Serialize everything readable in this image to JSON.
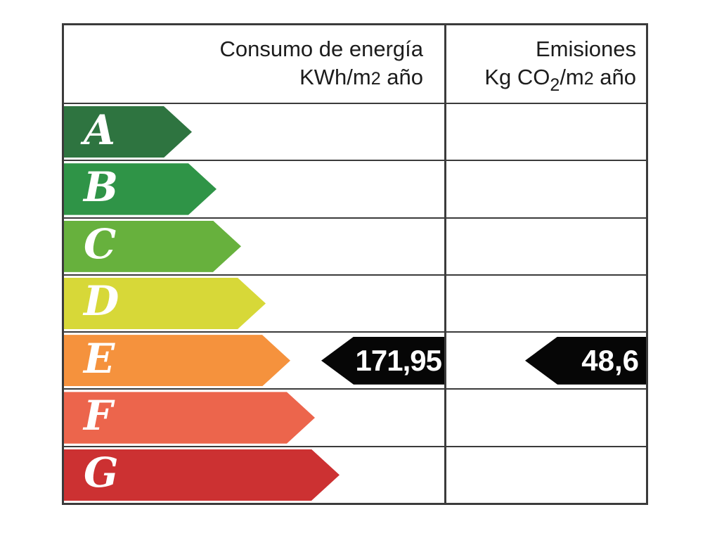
{
  "header": {
    "columns": [
      {
        "title": "Consumo de energía",
        "unit_parts": [
          {
            "text": "KWh/m"
          },
          {
            "text": "2",
            "script": "small"
          },
          {
            "text": " año"
          }
        ]
      },
      {
        "title": "Emisiones",
        "unit_parts": [
          {
            "text": "Kg CO"
          },
          {
            "text": "2",
            "script": "sub"
          },
          {
            "text": "/m"
          },
          {
            "text": "2",
            "script": "small"
          },
          {
            "text": " año"
          }
        ]
      }
    ]
  },
  "ratings": [
    {
      "letter": "A",
      "color": "#2e7440",
      "arrow_width": 182
    },
    {
      "letter": "B",
      "color": "#2f9447",
      "arrow_width": 217
    },
    {
      "letter": "C",
      "color": "#67b13d",
      "arrow_width": 252
    },
    {
      "letter": "D",
      "color": "#d7d838",
      "arrow_width": 287
    },
    {
      "letter": "E",
      "color": "#f5923d",
      "arrow_width": 322
    },
    {
      "letter": "F",
      "color": "#ec654c",
      "arrow_width": 357
    },
    {
      "letter": "G",
      "color": "#cc3132",
      "arrow_width": 392
    }
  ],
  "result": {
    "letter": "E",
    "consumption_value": "171,95",
    "emissions_value": "48,6"
  },
  "colors": {
    "value_tag_background": "#060606",
    "value_tag_text": "#ffffff",
    "border": "#3b3b3b",
    "letter_text": "#ffffff"
  },
  "chart_data": {
    "type": "table",
    "columns": [
      "Consumo de energía KWh/m2 año",
      "Emisiones Kg CO2/m2 año"
    ],
    "rating_scale": [
      "A",
      "B",
      "C",
      "D",
      "E",
      "F",
      "G"
    ],
    "rating_scale_colors": [
      "#2e7440",
      "#2f9447",
      "#67b13d",
      "#d7d838",
      "#f5923d",
      "#ec654c",
      "#cc3132"
    ],
    "assigned_rating": "E",
    "values": {
      "consumo_kwh_m2_ano": 171.95,
      "emisiones_kg_co2_m2_ano": 48.6
    },
    "value_labels": [
      "171,95",
      "48,6"
    ]
  }
}
